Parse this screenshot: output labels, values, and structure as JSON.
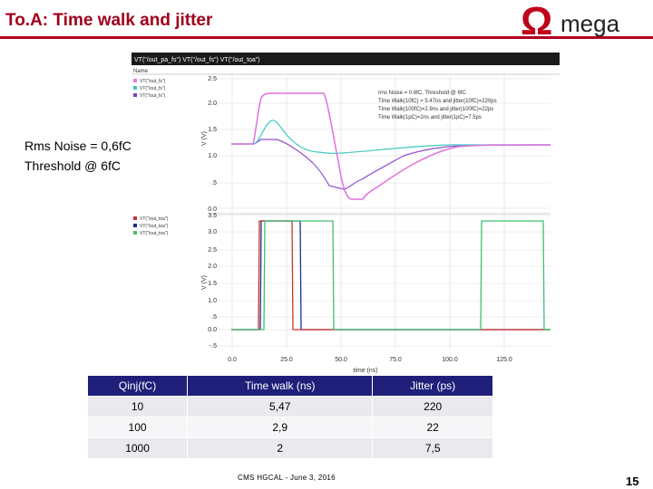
{
  "slide": {
    "title": "To.A: Time walk and jitter",
    "logo_text": "mega",
    "logo_symbol": "Ω",
    "footer": "CMS HGCAL -  June 3, 2016",
    "page_number": "15",
    "accent_color": "#a0001a"
  },
  "note": {
    "line1": "Rms Noise = 0,6fC",
    "line2": "Threshold @ 6fC"
  },
  "sim": {
    "header": "VT(\"/out_pa_fs\") VT(\"/out_fs\") VT(\"/out_toa\")",
    "name_label": "Name",
    "top_legend": [
      {
        "label": "VT(\"/out_fs\")",
        "color": "#e080e0"
      },
      {
        "label": "VT(\"/out_fs\")",
        "color": "#40c8c0"
      },
      {
        "label": "VT(\"/out_fs\")",
        "color": "#8040c0"
      }
    ],
    "bottom_legend": [
      {
        "label": "VT(\"/out_toa\")",
        "color": "#d03030"
      },
      {
        "label": "VT(\"/out_toa\")",
        "color": "#203090"
      },
      {
        "label": "VT(\"/out_toa\")",
        "color": "#40c070"
      }
    ],
    "annotations": [
      "rms Noise = 0.6fC, Threshold @ 6fC",
      "Time Walk(10fC) = 5.47ns and jitter(10fC)=220ps",
      "Time Walk(100fC)=2.9ns and jitter(100fC)=22ps",
      "Time Walk(1pC)=2ns and jitter(1pC)=7.5ps"
    ],
    "y_axis_label": "V (V)",
    "top_y_ticks": [
      "2.5",
      "2.0",
      "1.5",
      "1.0",
      ".5",
      "0.0"
    ],
    "bottom_y_ticks": [
      "3.5",
      "3.0",
      "2.5",
      "2.0",
      "1.5",
      "1.0",
      ".5",
      "0.0",
      "-.5"
    ],
    "x_ticks": [
      "0.0",
      "25.0",
      "50.0",
      "75.0",
      "100.0",
      "125.0"
    ],
    "x_axis_label": "time (ns)"
  },
  "table": {
    "headers": [
      "Qinj(fC)",
      "Time walk (ns)",
      "Jitter (ps)"
    ],
    "rows": [
      [
        "10",
        "5,47",
        "220"
      ],
      [
        "100",
        "2,9",
        "22"
      ],
      [
        "1000",
        "2",
        "7,5"
      ]
    ]
  }
}
